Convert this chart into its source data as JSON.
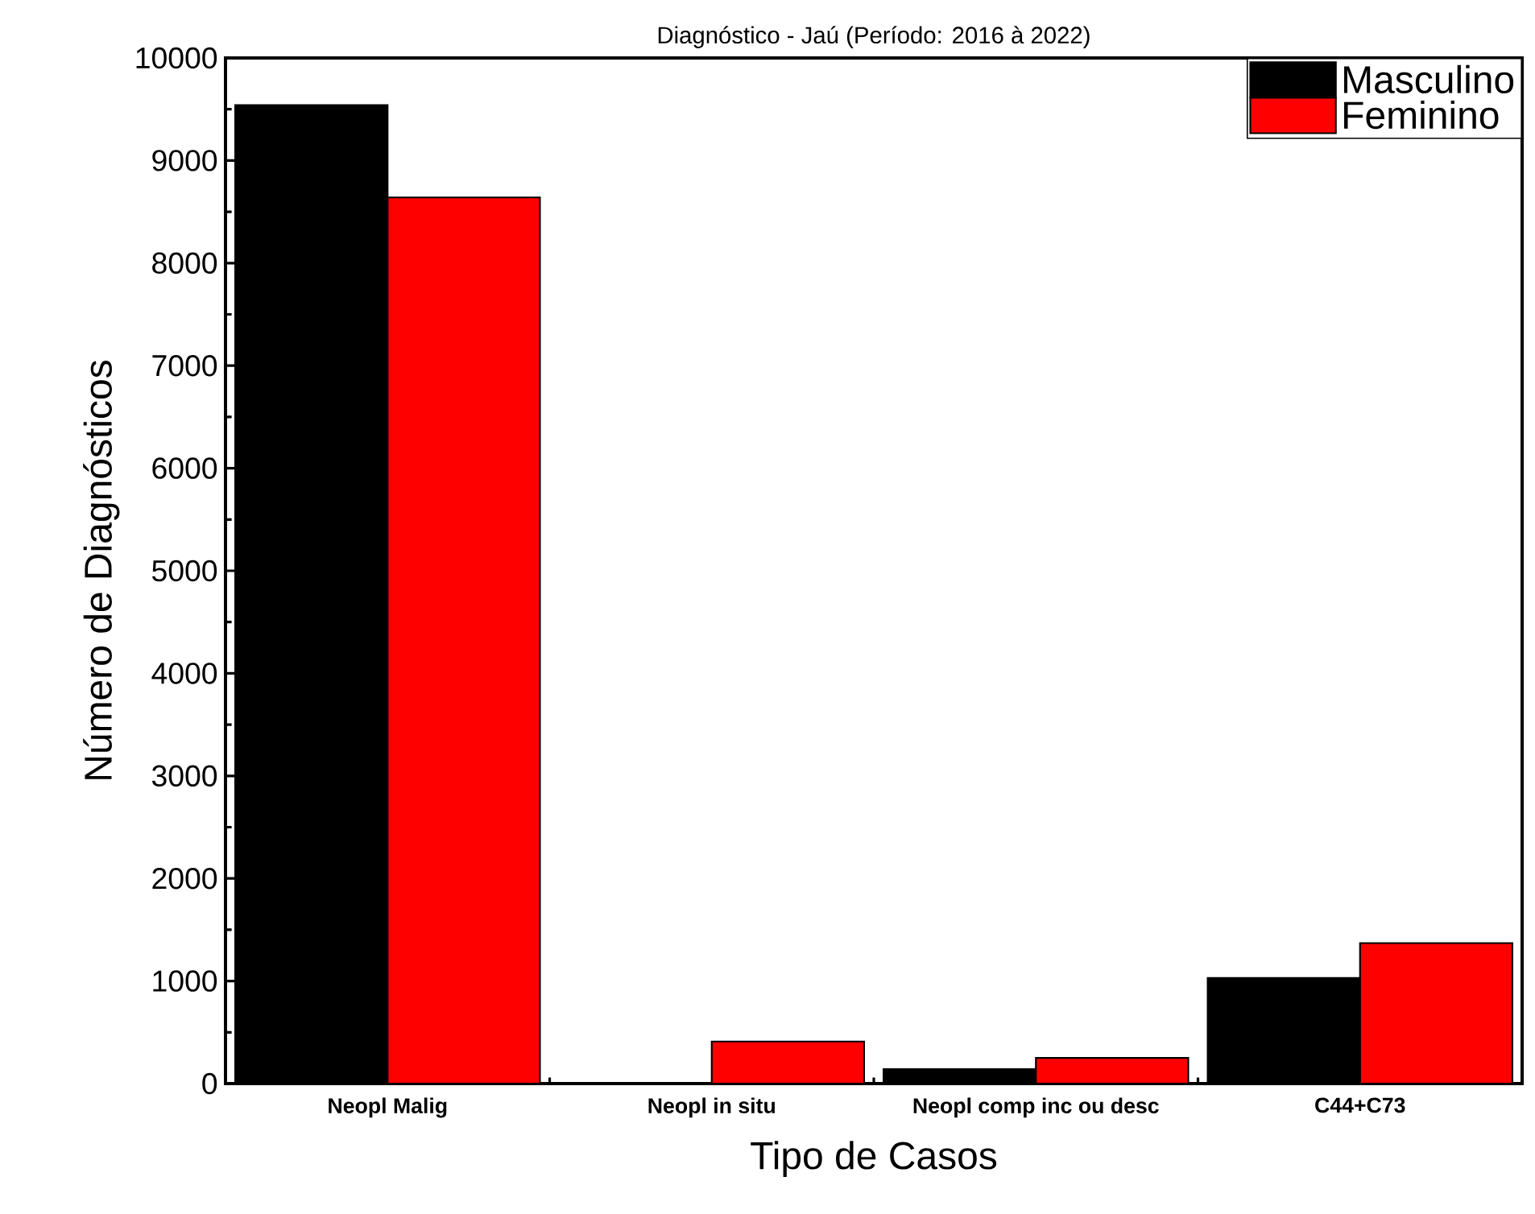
{
  "chart_data": {
    "type": "bar",
    "title": "Diagnóstico - Jaú (Período: 2016 à 2022)",
    "xlabel": "Tipo de Casos",
    "ylabel": "Número de Diagnósticos",
    "categories": [
      "Neopl Malig",
      "Neopl in situ",
      "Neopl comp inc ou desc",
      "C44+C73"
    ],
    "series": [
      {
        "name": "Masculino",
        "color": "#000000",
        "values": [
          9540,
          0,
          140,
          1030
        ]
      },
      {
        "name": "Feminino",
        "color": "#ff0000",
        "values": [
          8640,
          410,
          250,
          1370
        ]
      }
    ],
    "ylim": [
      0,
      10000
    ],
    "yticks": [
      0,
      1000,
      2000,
      3000,
      4000,
      5000,
      6000,
      7000,
      8000,
      9000,
      10000
    ],
    "legend": "top right"
  }
}
